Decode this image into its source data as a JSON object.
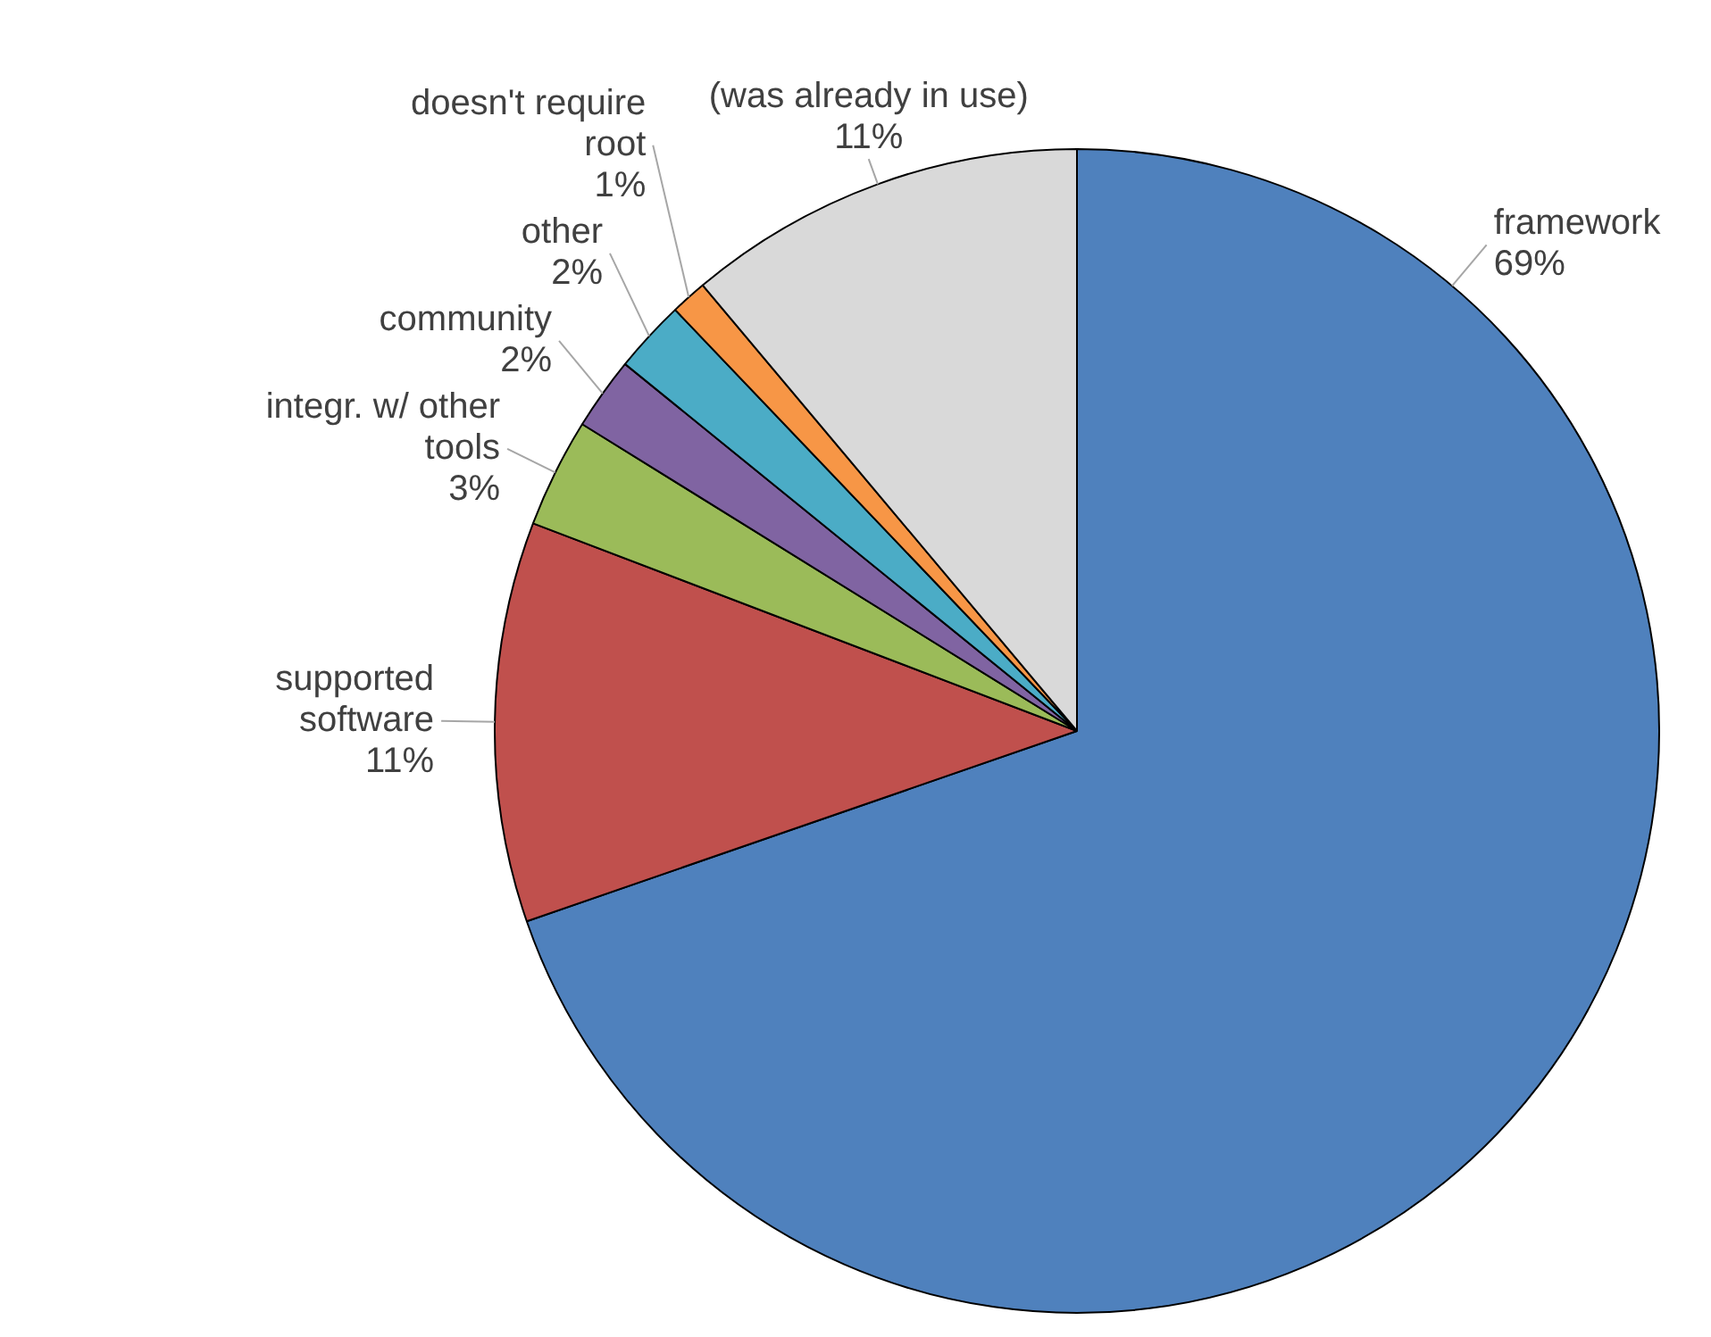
{
  "chart_data": {
    "type": "pie",
    "categories": [
      "framework",
      "supported software",
      "integr. w/ other tools",
      "community",
      "other",
      "doesn't require root",
      "(was already in use)"
    ],
    "values": [
      69,
      11,
      3,
      2,
      2,
      1,
      11
    ],
    "value_labels": [
      "69%",
      "11%",
      "3%",
      "2%",
      "2%",
      "1%",
      "11%"
    ],
    "colors": [
      "#4f81bd",
      "#c0504d",
      "#9bbb59",
      "#8064a2",
      "#4bacc6",
      "#f79646",
      "#d9d9d9"
    ],
    "legend": false
  }
}
